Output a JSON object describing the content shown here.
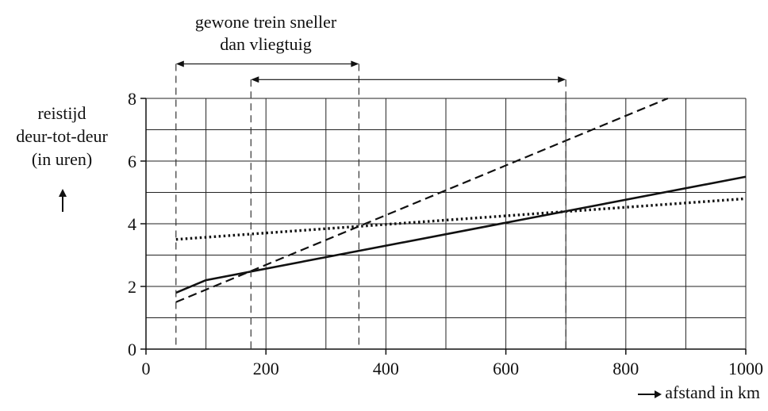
{
  "chart_data": {
    "type": "line",
    "xlabel": "afstand in km",
    "ylabel_lines": [
      "reistijd",
      "deur-tot-deur",
      "(in uren)"
    ],
    "xlim": [
      0,
      1000
    ],
    "ylim": [
      0,
      8
    ],
    "x_ticks": [
      0,
      200,
      400,
      600,
      800,
      1000
    ],
    "y_ticks": [
      0,
      2,
      4,
      6,
      8
    ],
    "grid": true,
    "annotation_lines": [
      "gewone trein sneller",
      "dan vliegtuig"
    ],
    "series": [
      {
        "style": "dotted",
        "points": [
          [
            50,
            3.5
          ],
          [
            1000,
            4.8
          ]
        ]
      },
      {
        "style": "dashed",
        "points": [
          [
            50,
            1.5
          ],
          [
            870,
            8.0
          ]
        ]
      },
      {
        "style": "solid",
        "points": [
          [
            50,
            1.8
          ],
          [
            100,
            2.2
          ],
          [
            1000,
            5.5
          ]
        ]
      }
    ],
    "ranges": [
      {
        "from": 50,
        "to": 355,
        "y_level": 9.1
      },
      {
        "from": 175,
        "to": 700,
        "y_level": 8.6
      }
    ]
  }
}
